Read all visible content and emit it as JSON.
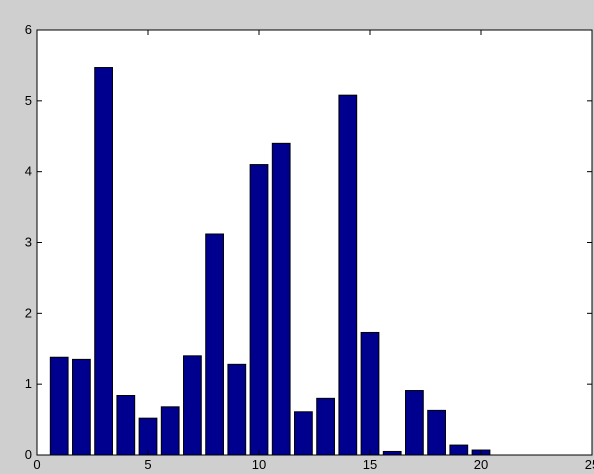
{
  "chart_data": {
    "type": "bar",
    "x": [
      1,
      2,
      3,
      4,
      5,
      6,
      7,
      8,
      9,
      10,
      11,
      12,
      13,
      14,
      15,
      16,
      17,
      18,
      19,
      20
    ],
    "values": [
      1.38,
      1.35,
      5.47,
      0.84,
      0.52,
      0.68,
      1.4,
      3.12,
      1.28,
      4.1,
      4.4,
      0.61,
      0.8,
      5.08,
      1.73,
      0.05,
      0.91,
      0.63,
      0.14,
      0.07
    ],
    "xlim": [
      0,
      25
    ],
    "ylim": [
      0,
      6
    ],
    "xticks": [
      0,
      5,
      10,
      15,
      20,
      25
    ],
    "yticks": [
      0,
      1,
      2,
      3,
      4,
      5,
      6
    ],
    "title": "",
    "xlabel": "",
    "ylabel": "",
    "grid": false,
    "colors": {
      "bar_fill": "#00008f",
      "bar_edge": "#000000",
      "axes_background": "#ffffff",
      "figure_background": "#cfcfcf"
    }
  }
}
